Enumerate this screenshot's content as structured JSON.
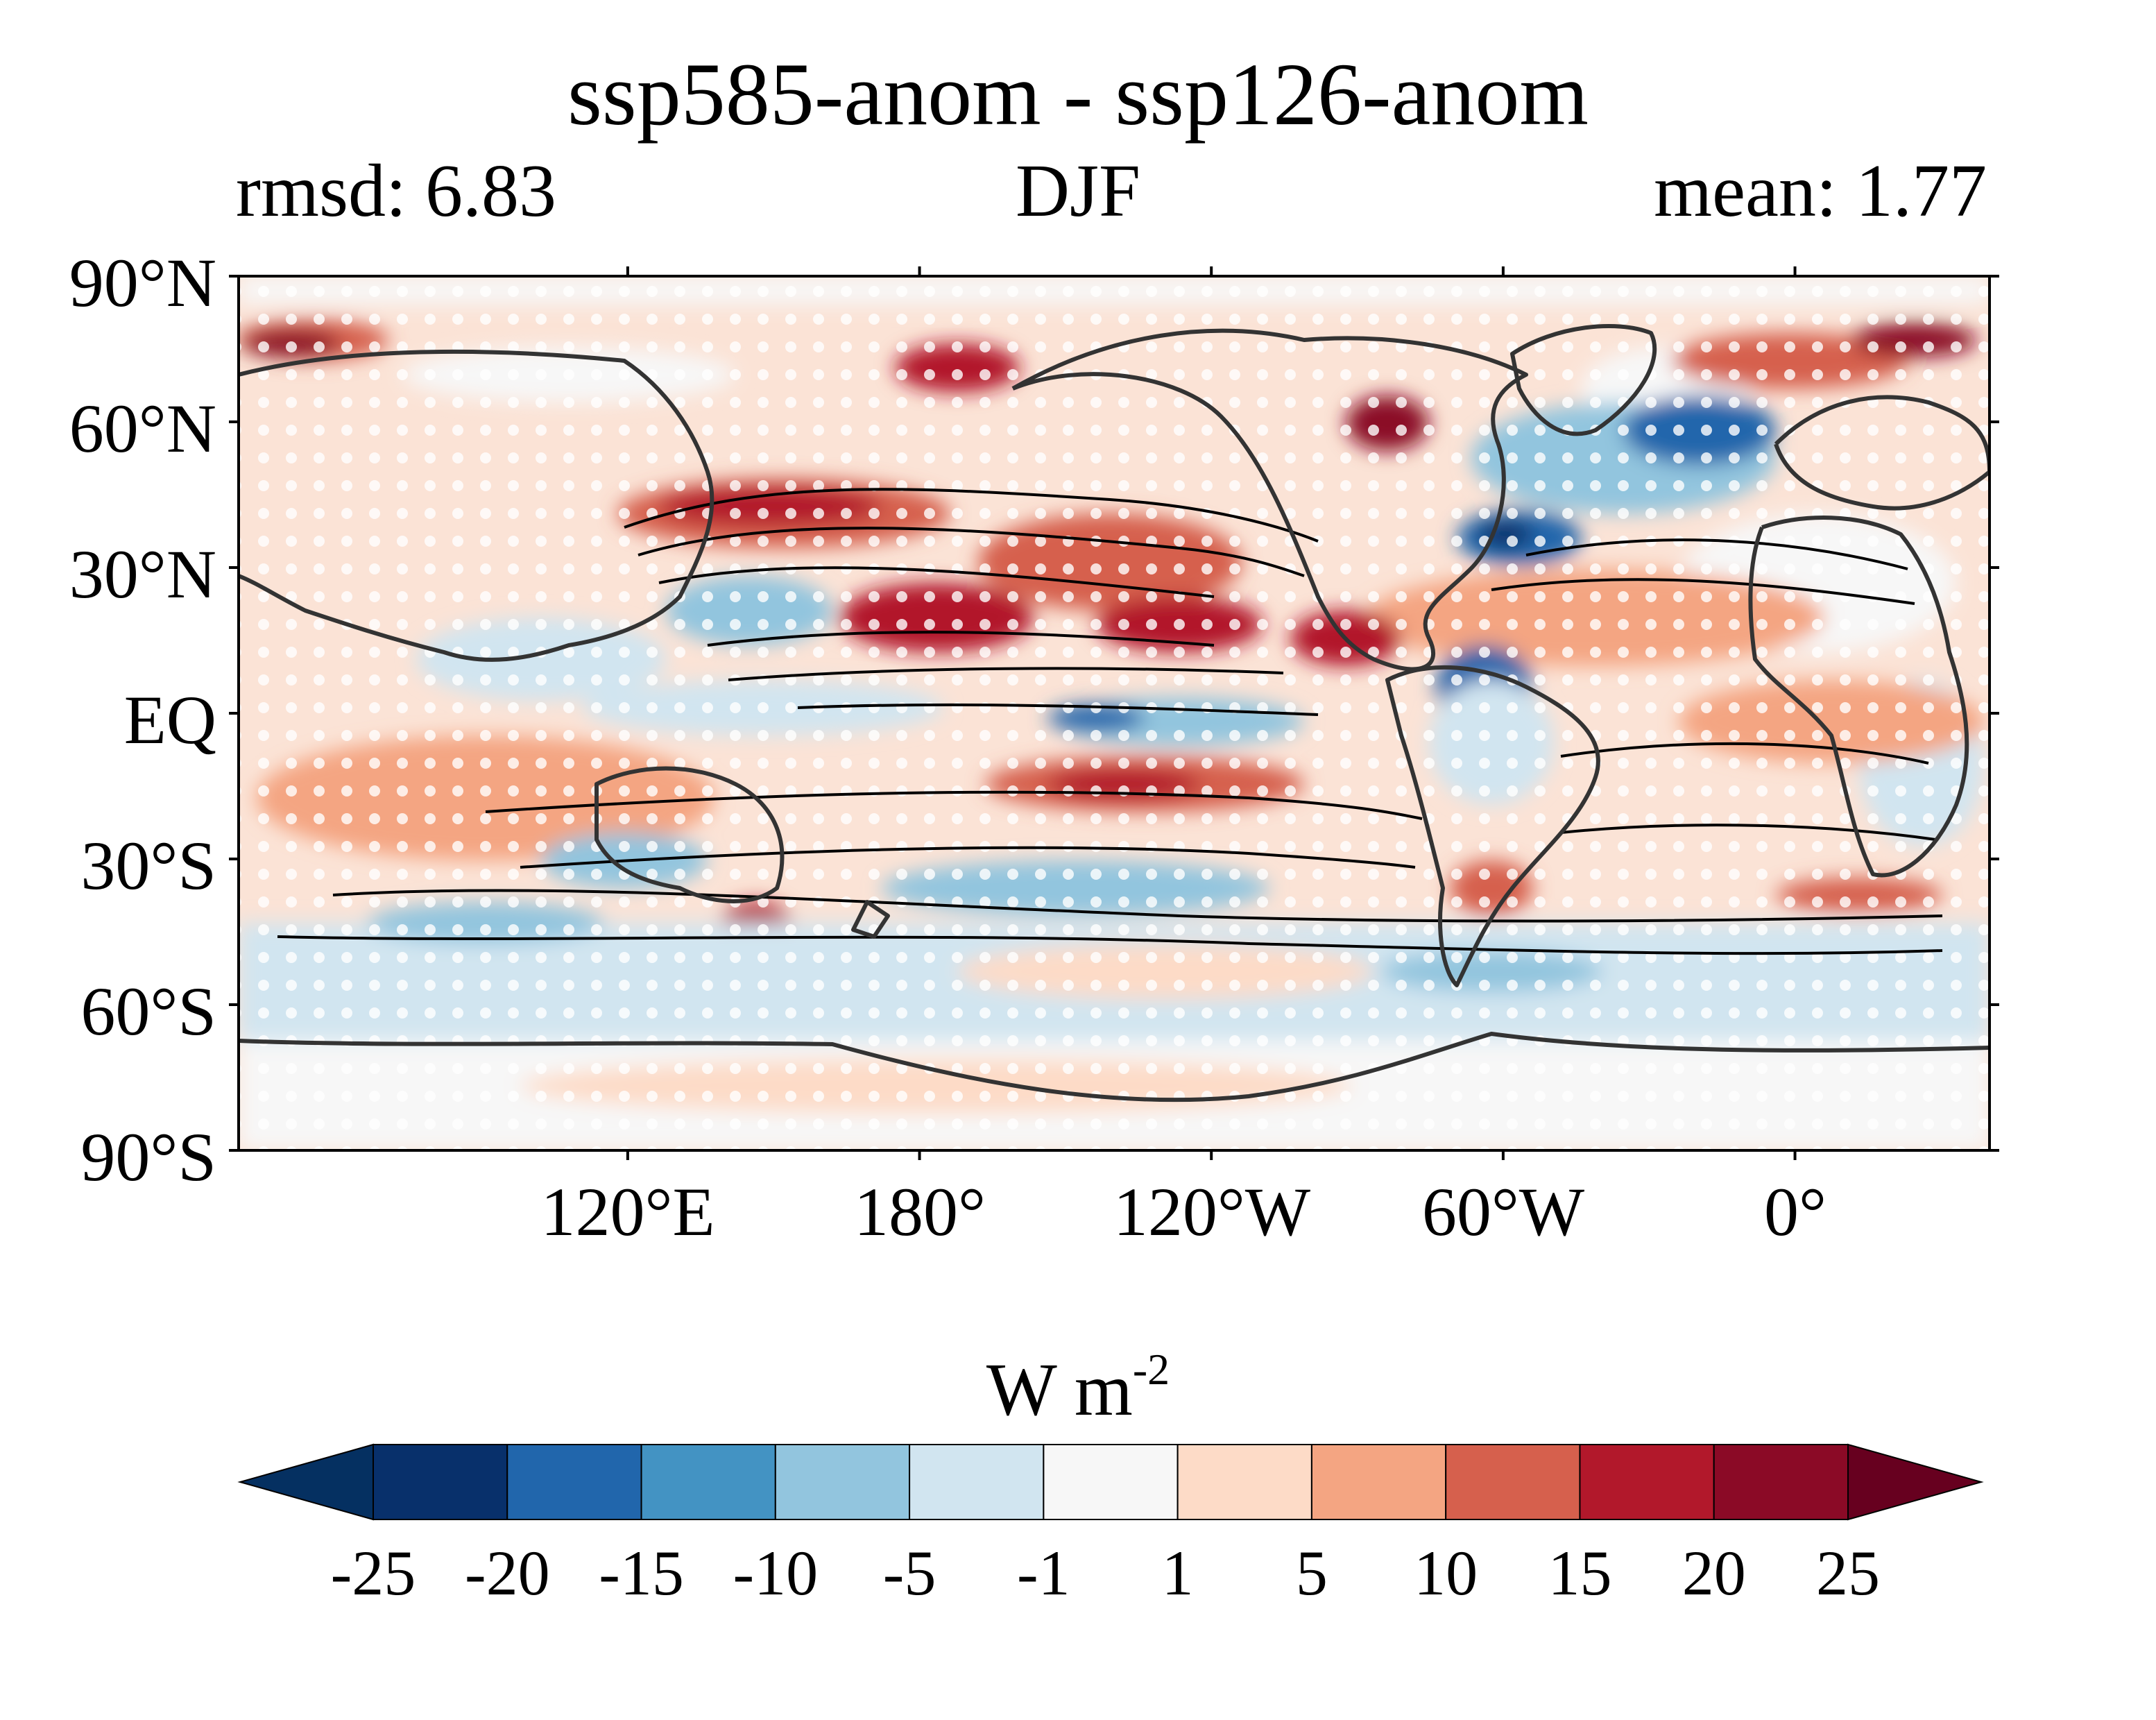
{
  "map": {
    "title": "ssp585-anom - ssp126-anom",
    "subtitle_left": "rmsd: 6.83",
    "subtitle_center": "DJF",
    "subtitle_right": "mean: 1.77",
    "lat_labels": [
      "90°N",
      "60°N",
      "30°N",
      "EQ",
      "30°S",
      "60°S",
      "90°S"
    ],
    "lon_labels": [
      "120°E",
      "180°",
      "120°W",
      "60°W",
      "0°"
    ],
    "projection_lon_range": [
      40,
      400
    ],
    "lat_range": [
      -90,
      90
    ]
  },
  "colorbar": {
    "unit_base": "W m",
    "unit_exp": "-2",
    "ticks": [
      "-25",
      "-20",
      "-15",
      "-10",
      "-5",
      "-1",
      "1",
      "5",
      "10",
      "15",
      "20",
      "25"
    ],
    "levels": [
      -25,
      -20,
      -15,
      -10,
      -5,
      -1,
      1,
      5,
      10,
      15,
      20,
      25
    ],
    "colors": [
      "#053061",
      "#08306b",
      "#2166ac",
      "#4393c3",
      "#92c5de",
      "#d1e5f0",
      "#f7f7f7",
      "#fddbc7",
      "#f4a582",
      "#d6604d",
      "#b2182b",
      "#8b0a26",
      "#67001f"
    ],
    "extend": "both"
  }
}
